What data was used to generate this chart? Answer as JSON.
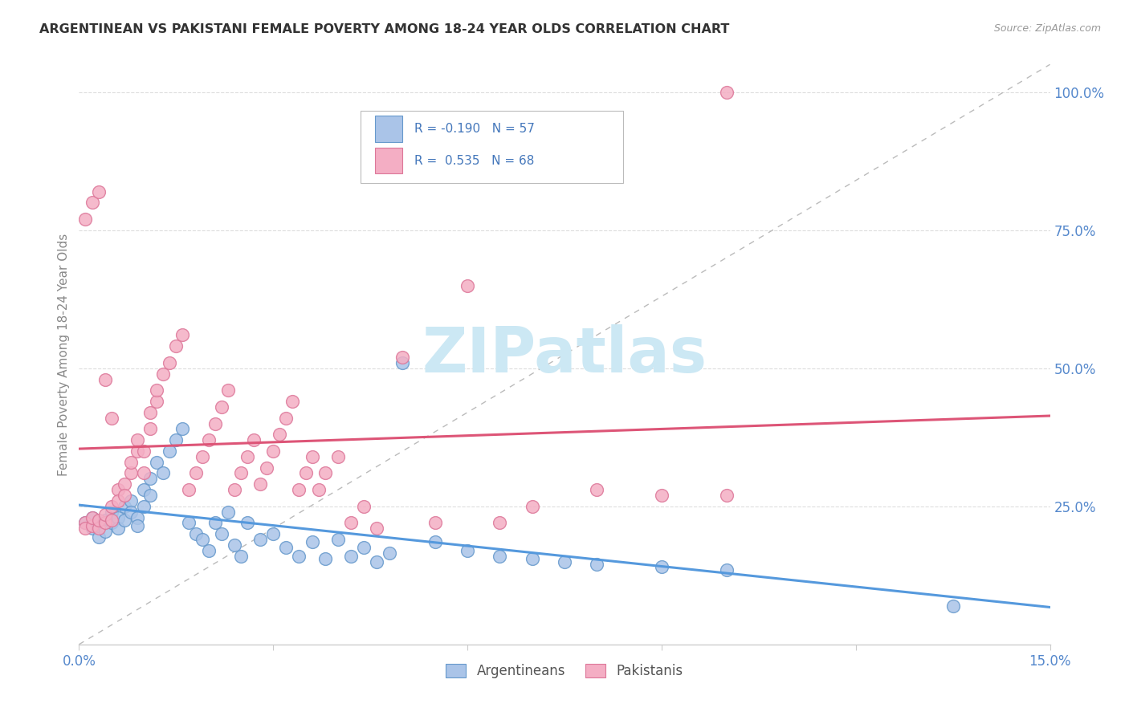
{
  "title": "ARGENTINEAN VS PAKISTANI FEMALE POVERTY AMONG 18-24 YEAR OLDS CORRELATION CHART",
  "source": "Source: ZipAtlas.com",
  "ylabel": "Female Poverty Among 18-24 Year Olds",
  "xlim": [
    0.0,
    0.15
  ],
  "ylim": [
    0.0,
    1.05
  ],
  "ytick_labels_right": [
    "25.0%",
    "50.0%",
    "75.0%",
    "100.0%"
  ],
  "yticks_right": [
    0.25,
    0.5,
    0.75,
    1.0
  ],
  "arg_color": "#aac4e8",
  "pak_color": "#f4aec4",
  "arg_edge_color": "#6699cc",
  "pak_edge_color": "#dd7799",
  "arg_line_color": "#5599dd",
  "pak_line_color": "#dd5577",
  "dashed_line_color": "#bbbbbb",
  "background_color": "#ffffff",
  "grid_color": "#dddddd",
  "tick_label_color": "#5588cc",
  "ylabel_color": "#888888",
  "title_color": "#333333",
  "source_color": "#999999",
  "watermark_color": "#cce8f4",
  "legend_text_color": "#4477bb",
  "arg_r": -0.19,
  "arg_n": 57,
  "pak_r": 0.535,
  "pak_n": 68,
  "arg_x": [
    0.001,
    0.002,
    0.002,
    0.003,
    0.003,
    0.004,
    0.004,
    0.005,
    0.005,
    0.006,
    0.006,
    0.007,
    0.007,
    0.008,
    0.008,
    0.009,
    0.009,
    0.01,
    0.01,
    0.011,
    0.011,
    0.012,
    0.013,
    0.014,
    0.015,
    0.016,
    0.017,
    0.018,
    0.019,
    0.02,
    0.021,
    0.022,
    0.023,
    0.024,
    0.025,
    0.026,
    0.028,
    0.03,
    0.032,
    0.034,
    0.036,
    0.038,
    0.04,
    0.042,
    0.044,
    0.046,
    0.048,
    0.05,
    0.055,
    0.06,
    0.065,
    0.07,
    0.075,
    0.08,
    0.09,
    0.1,
    0.135
  ],
  "arg_y": [
    0.22,
    0.21,
    0.23,
    0.195,
    0.215,
    0.225,
    0.205,
    0.22,
    0.24,
    0.23,
    0.21,
    0.25,
    0.225,
    0.26,
    0.24,
    0.23,
    0.215,
    0.28,
    0.25,
    0.3,
    0.27,
    0.33,
    0.31,
    0.35,
    0.37,
    0.39,
    0.22,
    0.2,
    0.19,
    0.17,
    0.22,
    0.2,
    0.24,
    0.18,
    0.16,
    0.22,
    0.19,
    0.2,
    0.175,
    0.16,
    0.185,
    0.155,
    0.19,
    0.16,
    0.175,
    0.15,
    0.165,
    0.51,
    0.185,
    0.17,
    0.16,
    0.155,
    0.15,
    0.145,
    0.14,
    0.135,
    0.07
  ],
  "pak_x": [
    0.001,
    0.001,
    0.002,
    0.002,
    0.003,
    0.003,
    0.004,
    0.004,
    0.005,
    0.005,
    0.006,
    0.006,
    0.007,
    0.007,
    0.008,
    0.008,
    0.009,
    0.009,
    0.01,
    0.01,
    0.011,
    0.011,
    0.012,
    0.012,
    0.013,
    0.014,
    0.015,
    0.016,
    0.017,
    0.018,
    0.019,
    0.02,
    0.021,
    0.022,
    0.023,
    0.024,
    0.025,
    0.026,
    0.027,
    0.028,
    0.029,
    0.03,
    0.031,
    0.032,
    0.033,
    0.034,
    0.035,
    0.036,
    0.037,
    0.038,
    0.04,
    0.042,
    0.044,
    0.046,
    0.05,
    0.055,
    0.06,
    0.065,
    0.07,
    0.08,
    0.09,
    0.1,
    0.001,
    0.002,
    0.003,
    0.004,
    0.005,
    0.1
  ],
  "pak_y": [
    0.22,
    0.21,
    0.215,
    0.23,
    0.21,
    0.225,
    0.22,
    0.235,
    0.225,
    0.25,
    0.28,
    0.26,
    0.29,
    0.27,
    0.31,
    0.33,
    0.35,
    0.37,
    0.31,
    0.35,
    0.39,
    0.42,
    0.44,
    0.46,
    0.49,
    0.51,
    0.54,
    0.56,
    0.28,
    0.31,
    0.34,
    0.37,
    0.4,
    0.43,
    0.46,
    0.28,
    0.31,
    0.34,
    0.37,
    0.29,
    0.32,
    0.35,
    0.38,
    0.41,
    0.44,
    0.28,
    0.31,
    0.34,
    0.28,
    0.31,
    0.34,
    0.22,
    0.25,
    0.21,
    0.52,
    0.22,
    0.65,
    0.22,
    0.25,
    0.28,
    0.27,
    0.27,
    0.77,
    0.8,
    0.82,
    0.48,
    0.41,
    1.0
  ]
}
